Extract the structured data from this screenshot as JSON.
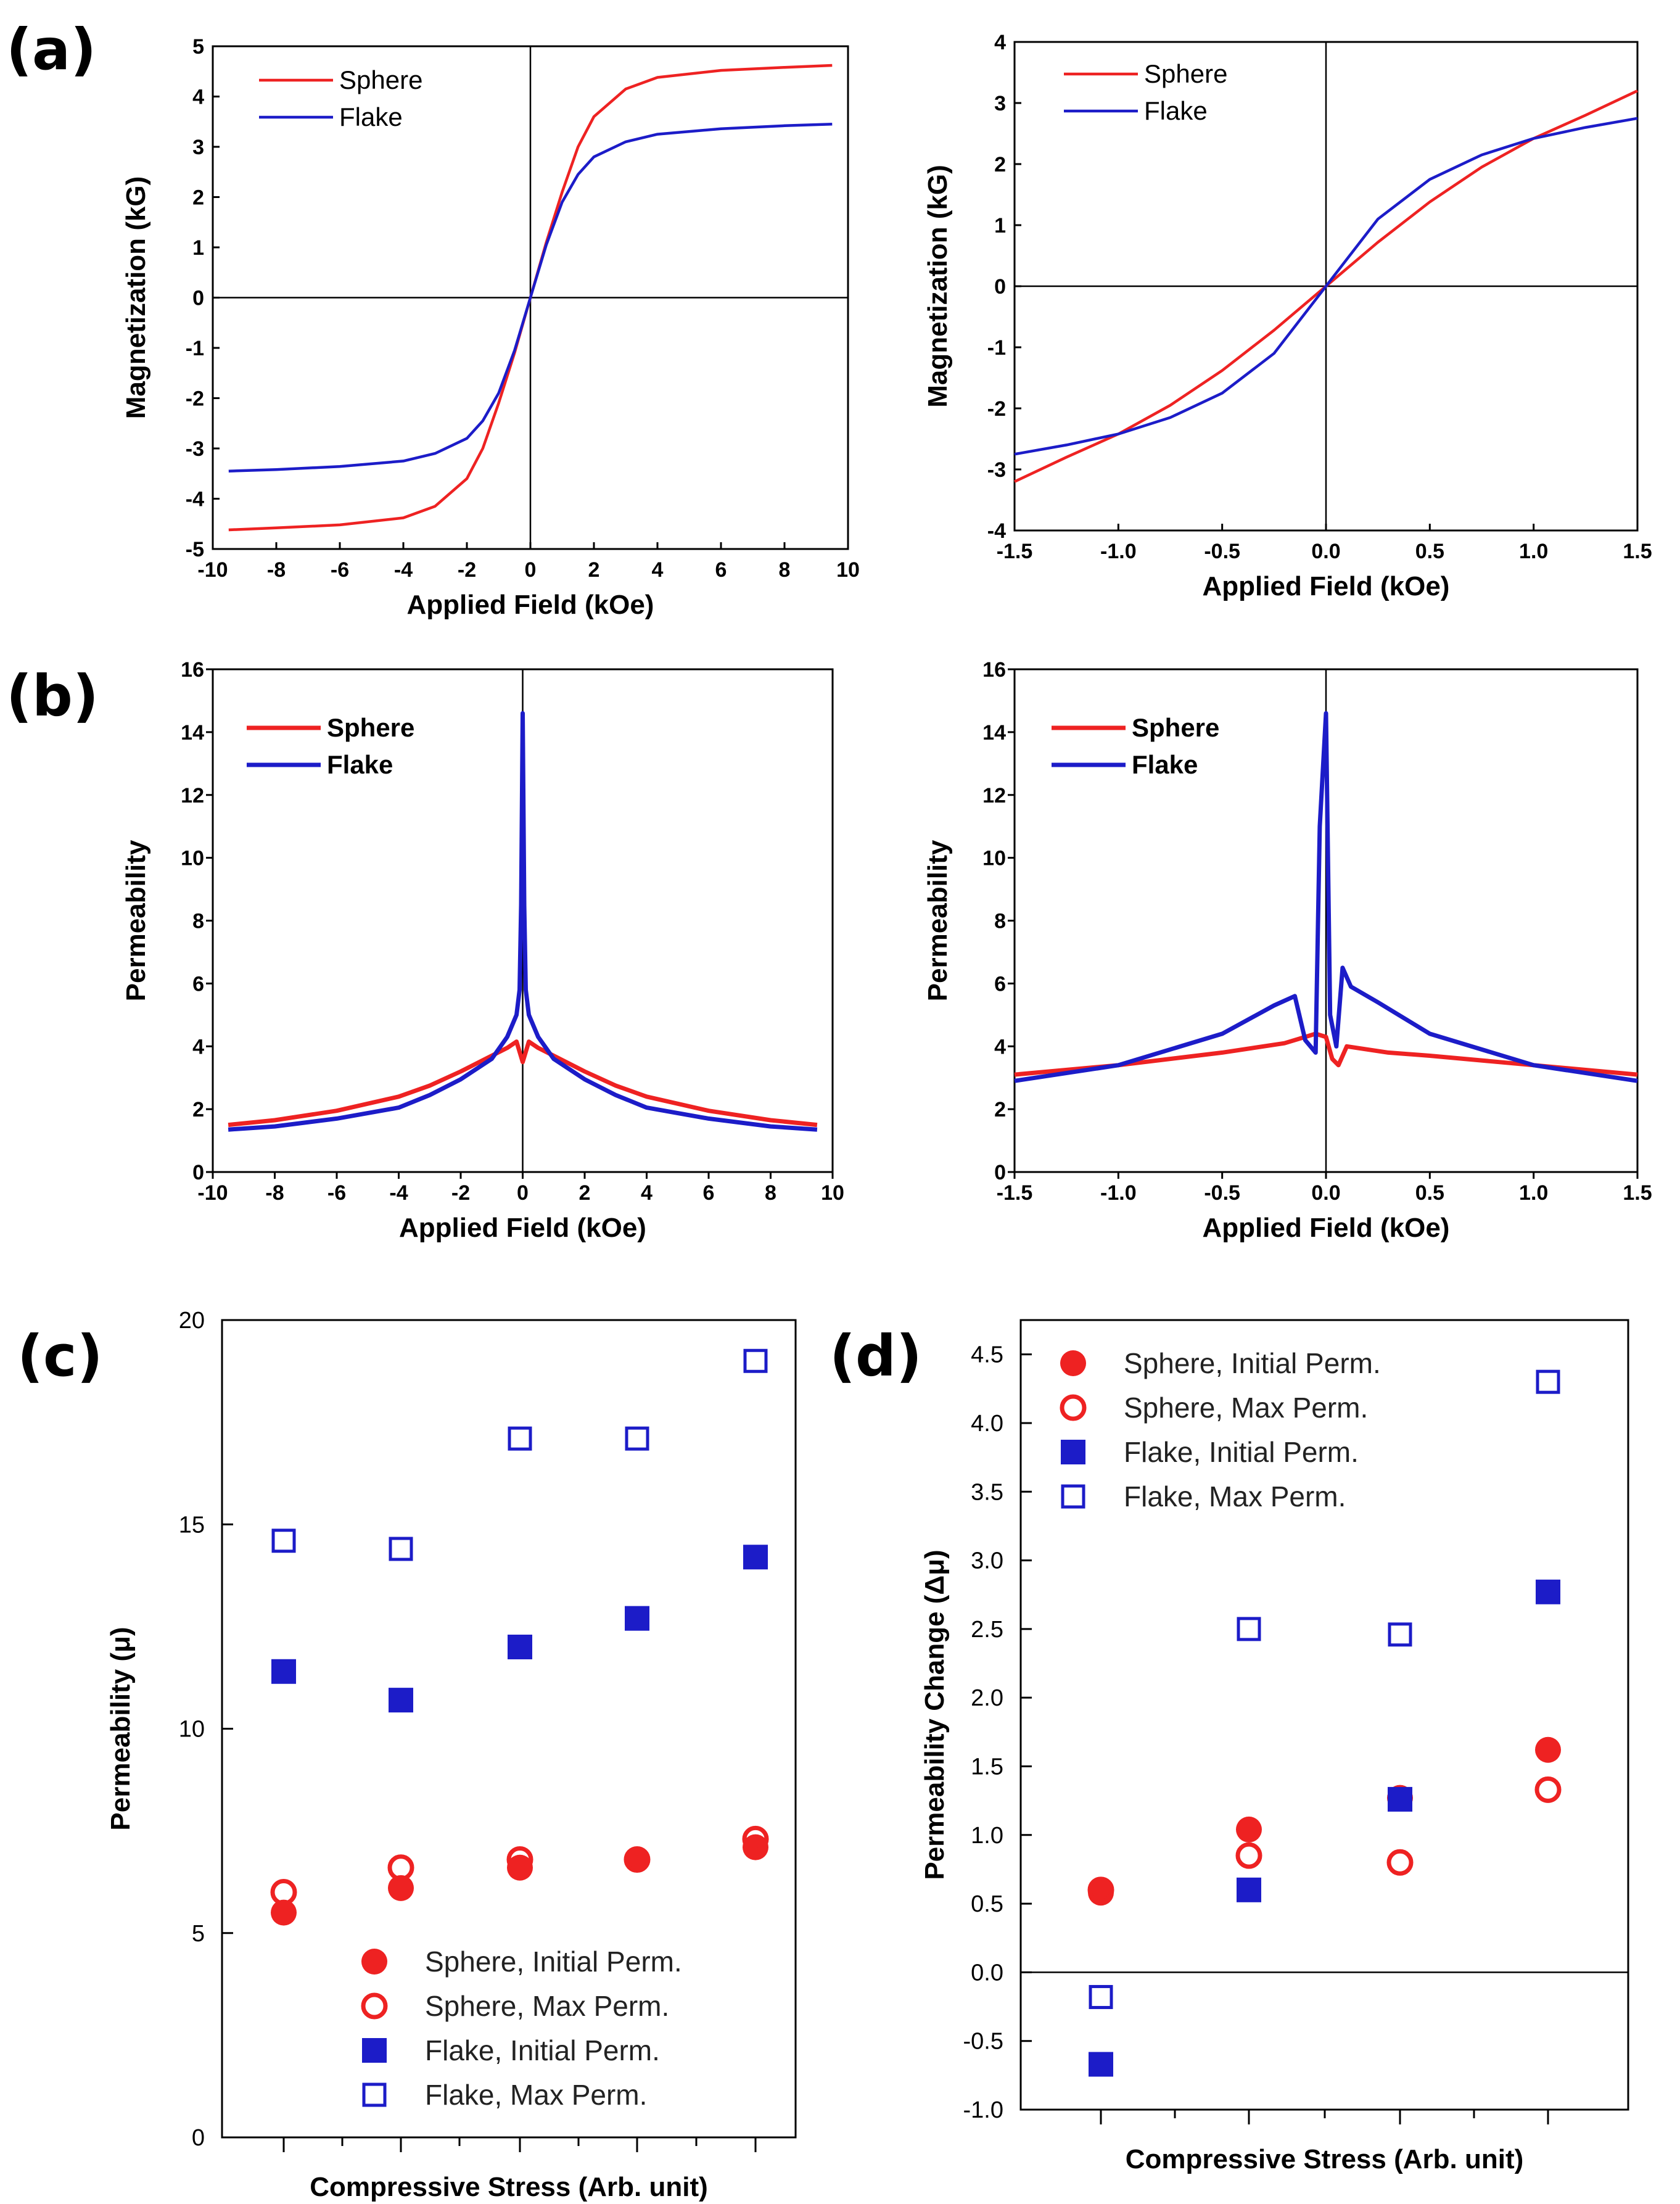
{
  "panel_labels": [
    "(a)",
    "(b)",
    "(c)",
    "(d)"
  ],
  "colors": {
    "sphere": "#ee2222",
    "flake": "#1c1cc8"
  },
  "chart_data": [
    {
      "id": "a1",
      "type": "line",
      "xlabel": "Applied Field (kOe)",
      "ylabel": "Magnetization (kG)",
      "xlim": [
        -10,
        10
      ],
      "ylim": [
        -5,
        5
      ],
      "xticks": [
        -10,
        -8,
        -6,
        -4,
        -2,
        0,
        2,
        4,
        6,
        8,
        10
      ],
      "yticks": [
        -5,
        -4,
        -3,
        -2,
        -1,
        0,
        1,
        2,
        3,
        4,
        5
      ],
      "xtick_labels": [
        "-10",
        "-8",
        "-6",
        "-4",
        "-2",
        "0",
        "2",
        "4",
        "6",
        "8",
        "10"
      ],
      "ytick_labels": [
        "-5",
        "-4",
        "-3",
        "-2",
        "-1",
        "0",
        "1",
        "2",
        "3",
        "4",
        "5"
      ],
      "legend": [
        "Sphere",
        "Flake"
      ],
      "series": [
        {
          "name": "Sphere",
          "x": [
            -9.5,
            -8,
            -6,
            -4,
            -3,
            -2,
            -1.5,
            -1,
            -0.5,
            0,
            0.5,
            1,
            1.5,
            2,
            3,
            4,
            6,
            8,
            9.5
          ],
          "y": [
            -4.62,
            -4.58,
            -4.52,
            -4.38,
            -4.15,
            -3.6,
            -3.0,
            -2.1,
            -1.1,
            0,
            1.1,
            2.1,
            3.0,
            3.6,
            4.15,
            4.38,
            4.52,
            4.58,
            4.62
          ]
        },
        {
          "name": "Flake",
          "x": [
            -9.5,
            -8,
            -6,
            -4,
            -3,
            -2,
            -1.5,
            -1,
            -0.5,
            0,
            0.5,
            1,
            1.5,
            2,
            3,
            4,
            6,
            8,
            9.5
          ],
          "y": [
            -3.45,
            -3.42,
            -3.36,
            -3.25,
            -3.1,
            -2.8,
            -2.45,
            -1.9,
            -1.05,
            0,
            1.05,
            1.9,
            2.45,
            2.8,
            3.1,
            3.25,
            3.36,
            3.42,
            3.45
          ]
        }
      ]
    },
    {
      "id": "a2",
      "type": "line",
      "xlabel": "Applied Field (kOe)",
      "ylabel": "Magnetization (kG)",
      "xlim": [
        -1.5,
        1.5
      ],
      "ylim": [
        -4,
        4
      ],
      "xticks": [
        -1.5,
        -1.0,
        -0.5,
        0.0,
        0.5,
        1.0,
        1.5
      ],
      "yticks": [
        -4,
        -3,
        -2,
        -1,
        0,
        1,
        2,
        3,
        4
      ],
      "xtick_labels": [
        "-1.5",
        "-1.0",
        "-0.5",
        "0.0",
        "0.5",
        "1.0",
        "1.5"
      ],
      "ytick_labels": [
        "-4",
        "-3",
        "-2",
        "-1",
        "0",
        "1",
        "2",
        "3",
        "4"
      ],
      "legend": [
        "Sphere",
        "Flake"
      ],
      "series": [
        {
          "name": "Sphere",
          "x": [
            -1.5,
            -1.25,
            -1.0,
            -0.75,
            -0.5,
            -0.25,
            0,
            0.25,
            0.5,
            0.75,
            1.0,
            1.25,
            1.5
          ],
          "y": [
            -3.2,
            -2.8,
            -2.42,
            -1.95,
            -1.38,
            -0.72,
            0,
            0.72,
            1.38,
            1.95,
            2.42,
            2.8,
            3.2
          ]
        },
        {
          "name": "Flake",
          "x": [
            -1.5,
            -1.25,
            -1.0,
            -0.75,
            -0.5,
            -0.25,
            0,
            0.25,
            0.5,
            0.75,
            1.0,
            1.25,
            1.5
          ],
          "y": [
            -2.75,
            -2.6,
            -2.42,
            -2.15,
            -1.75,
            -1.1,
            0,
            1.1,
            1.75,
            2.15,
            2.42,
            2.6,
            2.75
          ]
        }
      ]
    },
    {
      "id": "b1",
      "type": "line",
      "xlabel": "Applied Field (kOe)",
      "ylabel": "Permeability",
      "xlim": [
        -10,
        10
      ],
      "ylim": [
        0,
        16
      ],
      "xticks": [
        -10,
        -8,
        -6,
        -4,
        -2,
        0,
        2,
        4,
        6,
        8,
        10
      ],
      "yticks": [
        0,
        2,
        4,
        6,
        8,
        10,
        12,
        14,
        16
      ],
      "xtick_labels": [
        "-10",
        "-8",
        "-6",
        "-4",
        "-2",
        "0",
        "2",
        "4",
        "6",
        "8",
        "10"
      ],
      "ytick_labels": [
        "0",
        "2",
        "4",
        "6",
        "8",
        "10",
        "12",
        "14",
        "16"
      ],
      "legend": [
        "Sphere",
        "Flake"
      ],
      "series": [
        {
          "name": "Sphere",
          "x": [
            -9.5,
            -8,
            -6,
            -4,
            -3,
            -2,
            -1,
            -0.5,
            -0.2,
            0,
            0.2,
            0.5,
            1,
            2,
            3,
            4,
            6,
            8,
            9.5
          ],
          "y": [
            1.5,
            1.65,
            1.95,
            2.4,
            2.75,
            3.2,
            3.7,
            3.95,
            4.15,
            3.5,
            4.15,
            3.95,
            3.7,
            3.2,
            2.75,
            2.4,
            1.95,
            1.65,
            1.5
          ]
        },
        {
          "name": "Flake",
          "x": [
            -9.5,
            -8,
            -6,
            -4,
            -3,
            -2,
            -1,
            -0.5,
            -0.2,
            -0.1,
            -0.05,
            0,
            0.05,
            0.1,
            0.2,
            0.5,
            1,
            2,
            3,
            4,
            6,
            8,
            9.5
          ],
          "y": [
            1.35,
            1.45,
            1.7,
            2.05,
            2.45,
            2.95,
            3.6,
            4.3,
            5.0,
            5.8,
            8.5,
            14.6,
            8.5,
            5.8,
            5.0,
            4.3,
            3.6,
            2.95,
            2.45,
            2.05,
            1.7,
            1.45,
            1.35
          ]
        }
      ]
    },
    {
      "id": "b2",
      "type": "line",
      "xlabel": "Applied Field (kOe)",
      "ylabel": "Permeability",
      "xlim": [
        -1.5,
        1.5
      ],
      "ylim": [
        0,
        16
      ],
      "xticks": [
        -1.5,
        -1.0,
        -0.5,
        0.0,
        0.5,
        1.0,
        1.5
      ],
      "yticks": [
        0,
        2,
        4,
        6,
        8,
        10,
        12,
        14,
        16
      ],
      "xtick_labels": [
        "-1.5",
        "-1.0",
        "-0.5",
        "0.0",
        "0.5",
        "1.0",
        "1.5"
      ],
      "ytick_labels": [
        "0",
        "2",
        "4",
        "6",
        "8",
        "10",
        "12",
        "14",
        "16"
      ],
      "legend": [
        "Sphere",
        "Flake"
      ],
      "series": [
        {
          "name": "Sphere",
          "x": [
            -1.5,
            -1.0,
            -0.5,
            -0.2,
            -0.05,
            0,
            0.03,
            0.06,
            0.1,
            0.3,
            0.5,
            1.0,
            1.5
          ],
          "y": [
            3.1,
            3.4,
            3.8,
            4.1,
            4.4,
            4.3,
            3.6,
            3.4,
            4.0,
            3.8,
            3.7,
            3.4,
            3.1
          ]
        },
        {
          "name": "Flake",
          "x": [
            -1.5,
            -1.0,
            -0.5,
            -0.25,
            -0.15,
            -0.1,
            -0.05,
            -0.03,
            0,
            0.02,
            0.05,
            0.08,
            0.12,
            0.25,
            0.5,
            1.0,
            1.5
          ],
          "y": [
            2.9,
            3.4,
            4.4,
            5.3,
            5.6,
            4.2,
            3.8,
            11.0,
            14.6,
            5.0,
            4.0,
            6.5,
            5.9,
            5.4,
            4.4,
            3.4,
            2.9
          ]
        }
      ]
    },
    {
      "id": "c",
      "type": "scatter",
      "xlabel": "Compressive Stress (Arb. unit)",
      "ylabel": "Permeability (μ)",
      "ylim": [
        0,
        20
      ],
      "yticks": [
        0,
        5,
        10,
        15,
        20
      ],
      "ytick_labels": [
        "0",
        "5",
        "10",
        "15",
        "20"
      ],
      "x": [
        1,
        2,
        3,
        4,
        5
      ],
      "legend": [
        "Sphere, Initial Perm.",
        "Sphere, Max Perm.",
        "Flake, Initial Perm.",
        "Flake, Max Perm."
      ],
      "series": [
        {
          "name": "Sphere, Initial Perm.",
          "values": [
            5.5,
            6.1,
            6.6,
            6.8,
            7.1
          ]
        },
        {
          "name": "Sphere, Max Perm.",
          "values": [
            6.0,
            6.6,
            6.8,
            6.8,
            7.3
          ]
        },
        {
          "name": "Flake, Initial Perm.",
          "values": [
            11.4,
            10.7,
            12.0,
            12.7,
            14.2
          ]
        },
        {
          "name": "Flake, Max Perm.",
          "values": [
            14.6,
            14.4,
            17.1,
            17.1,
            19.0
          ]
        }
      ]
    },
    {
      "id": "d",
      "type": "scatter",
      "xlabel": "Compressive Stress (Arb. unit)",
      "ylabel": "Permeability Change (Δμ)",
      "ylim": [
        -1.0,
        4.75
      ],
      "yticks": [
        -1.0,
        -0.5,
        0.0,
        0.5,
        1.0,
        1.5,
        2.0,
        2.5,
        3.0,
        3.5,
        4.0,
        4.5
      ],
      "ytick_labels": [
        "-1.0",
        "-0.5",
        "0.0",
        "0.5",
        "1.0",
        "1.5",
        "2.0",
        "2.5",
        "3.0",
        "3.5",
        "4.0",
        "4.5"
      ],
      "x": [
        1,
        2,
        3,
        4
      ],
      "legend": [
        "Sphere, Initial Perm.",
        "Sphere, Max Perm.",
        "Flake, Initial Perm.",
        "Flake, Max Perm."
      ],
      "series": [
        {
          "name": "Sphere, Initial Perm.",
          "values": [
            0.58,
            1.04,
            1.27,
            1.62
          ]
        },
        {
          "name": "Sphere, Max Perm.",
          "values": [
            0.6,
            0.85,
            0.8,
            1.33
          ]
        },
        {
          "name": "Flake, Initial Perm.",
          "values": [
            -0.67,
            0.6,
            1.26,
            2.77
          ]
        },
        {
          "name": "Flake, Max Perm.",
          "values": [
            -0.18,
            2.5,
            2.46,
            4.3
          ]
        }
      ]
    }
  ]
}
